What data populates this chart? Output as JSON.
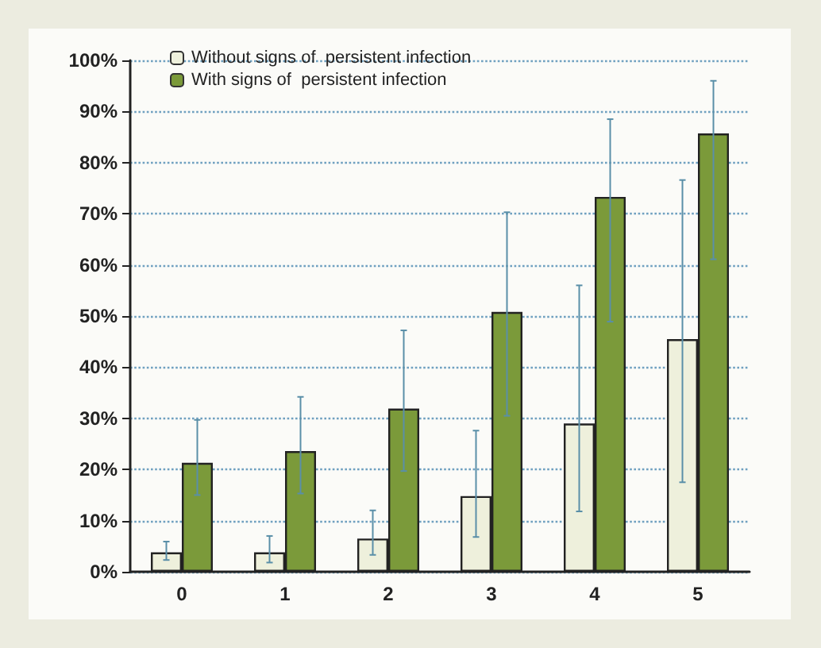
{
  "chart_data": {
    "type": "bar",
    "categories": [
      "0",
      "1",
      "2",
      "3",
      "4",
      "5"
    ],
    "series": [
      {
        "name": "Without signs of  persistent infection",
        "color": "#eef0dc",
        "values": [
          3.8,
          3.8,
          6.5,
          14.8,
          29,
          45.5
        ],
        "errors": [
          [
            2.3,
            5.9
          ],
          [
            1.8,
            7
          ],
          [
            3.3,
            12
          ],
          [
            6.8,
            27.6
          ],
          [
            11.8,
            56
          ],
          [
            17.5,
            76.6
          ]
        ]
      },
      {
        "name": "With signs of  persistent infection",
        "color": "#7b9a3a",
        "values": [
          21.3,
          23.6,
          31.9,
          50.8,
          73.3,
          85.7
        ],
        "errors": [
          [
            15,
            29.7
          ],
          [
            15.3,
            34.2
          ],
          [
            19.7,
            47.2
          ],
          [
            30.5,
            70.3
          ],
          [
            48.9,
            88.5
          ],
          [
            61.1,
            96
          ]
        ]
      }
    ],
    "ylim": [
      0,
      100
    ],
    "yticks": [
      {
        "value": 0,
        "label": "0%"
      },
      {
        "value": 10,
        "label": "10%"
      },
      {
        "value": 20,
        "label": "20%"
      },
      {
        "value": 30,
        "label": "30%"
      },
      {
        "value": 40,
        "label": "40%"
      },
      {
        "value": 50,
        "label": "50%"
      },
      {
        "value": 60,
        "label": "60%"
      },
      {
        "value": 70,
        "label": "70%"
      },
      {
        "value": 80,
        "label": "80%"
      },
      {
        "value": 90,
        "label": "90%"
      },
      {
        "value": 100,
        "label": "100%"
      }
    ],
    "grid": "y",
    "legend": "top left"
  }
}
